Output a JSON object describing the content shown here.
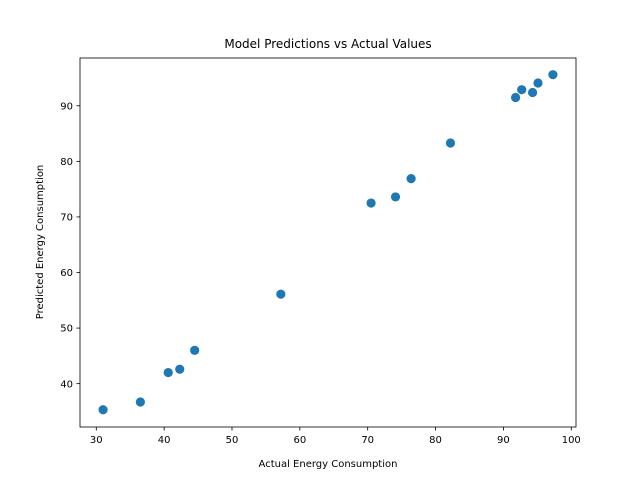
{
  "chart_data": {
    "type": "scatter",
    "title": "Model Predictions vs Actual Values",
    "xlabel": "Actual Energy Consumption",
    "ylabel": "Predicted Energy Consumption",
    "xlim": [
      27.6,
      100.7
    ],
    "ylim": [
      32.2,
      98.6
    ],
    "xticks": [
      30,
      40,
      50,
      60,
      70,
      80,
      90,
      100
    ],
    "yticks": [
      40,
      50,
      60,
      70,
      80,
      90
    ],
    "grid": false,
    "legend": "none",
    "series": [
      {
        "name": "predictions",
        "color": "#1f77b4",
        "points": [
          {
            "x": 31.0,
            "y": 35.3
          },
          {
            "x": 36.5,
            "y": 36.7
          },
          {
            "x": 40.6,
            "y": 42.0
          },
          {
            "x": 42.3,
            "y": 42.6
          },
          {
            "x": 44.5,
            "y": 46.0
          },
          {
            "x": 57.2,
            "y": 56.1
          },
          {
            "x": 70.5,
            "y": 72.5
          },
          {
            "x": 74.1,
            "y": 73.6
          },
          {
            "x": 76.4,
            "y": 76.9
          },
          {
            "x": 82.2,
            "y": 83.3
          },
          {
            "x": 91.8,
            "y": 91.5
          },
          {
            "x": 92.7,
            "y": 92.9
          },
          {
            "x": 94.3,
            "y": 92.4
          },
          {
            "x": 95.1,
            "y": 94.1
          },
          {
            "x": 97.3,
            "y": 95.6
          }
        ]
      }
    ]
  }
}
